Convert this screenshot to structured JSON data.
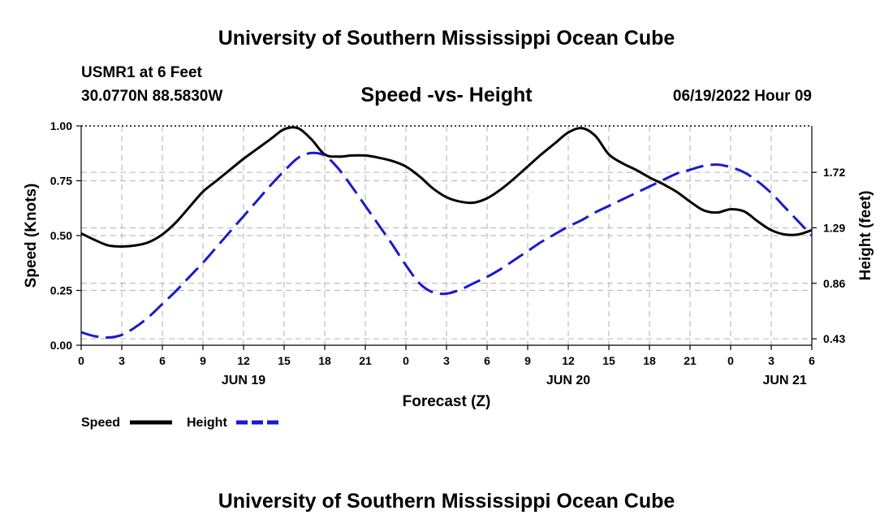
{
  "header": {
    "main_title": "University of Southern Mississippi Ocean Cube",
    "station": "USMR1 at 6 Feet",
    "location": "30.0770N  88.5830W",
    "datetime": "06/19/2022 Hour 09"
  },
  "footer": {
    "title": "University of Southern Mississippi Ocean Cube"
  },
  "colors": {
    "speed": "#000000",
    "height": "#1a1acc",
    "grid": "#bdbdbd"
  },
  "chart_data": {
    "type": "line",
    "title": "Speed -vs- Height",
    "xlabel": "Forecast (Z)",
    "ylabel": "Speed (Knots)",
    "y2label": "Height (feet)",
    "xlim": [
      0,
      54
    ],
    "ylim": [
      0,
      1
    ],
    "x_tick_positions": [
      0,
      3,
      6,
      9,
      12,
      15,
      18,
      21,
      24,
      27,
      30,
      33,
      36,
      39,
      42,
      45,
      48,
      51,
      54
    ],
    "x_tick_labels": [
      "0",
      "3",
      "6",
      "9",
      "12",
      "15",
      "18",
      "21",
      "0",
      "3",
      "6",
      "9",
      "12",
      "15",
      "18",
      "21",
      "0",
      "3",
      "6"
    ],
    "day_labels": [
      {
        "x": 12,
        "label": "JUN 19"
      },
      {
        "x": 36,
        "label": "JUN 20"
      },
      {
        "x": 52,
        "label": "JUN 21"
      }
    ],
    "y_ticks": [
      0,
      0.25,
      0.5,
      0.75,
      1.0
    ],
    "y_tick_labels": [
      "0.00",
      "0.25",
      "0.50",
      "0.75",
      "1.00"
    ],
    "y2_ticks": [
      0.43,
      0.86,
      1.29,
      1.72
    ],
    "y2_tick_labels": [
      "0.43",
      "0.86",
      "1.29",
      "1.72"
    ],
    "y2lim": [
      0.38,
      2.08
    ],
    "grid": true,
    "legend": "bottom-left",
    "series": [
      {
        "name": "Speed",
        "axis": "left",
        "style": "solid",
        "x": [
          0,
          1,
          2,
          3,
          4,
          5,
          6,
          7,
          8,
          9,
          10,
          11,
          12,
          13,
          14,
          15,
          16,
          17,
          18,
          19,
          20,
          21,
          22,
          23,
          24,
          25,
          26,
          27,
          28,
          29,
          30,
          31,
          32,
          33,
          34,
          35,
          36,
          37,
          38,
          39,
          40,
          41,
          42,
          43,
          44,
          45,
          46,
          47,
          48,
          49,
          50,
          51,
          52,
          53,
          54
        ],
        "values": [
          0.51,
          0.48,
          0.455,
          0.45,
          0.455,
          0.47,
          0.505,
          0.56,
          0.63,
          0.7,
          0.75,
          0.8,
          0.85,
          0.895,
          0.94,
          0.985,
          0.99,
          0.94,
          0.87,
          0.86,
          0.865,
          0.865,
          0.855,
          0.84,
          0.815,
          0.77,
          0.715,
          0.675,
          0.655,
          0.65,
          0.67,
          0.71,
          0.76,
          0.815,
          0.87,
          0.92,
          0.97,
          0.99,
          0.955,
          0.87,
          0.83,
          0.8,
          0.765,
          0.735,
          0.7,
          0.655,
          0.615,
          0.605,
          0.62,
          0.61,
          0.565,
          0.525,
          0.505,
          0.505,
          0.525
        ]
      },
      {
        "name": "Height",
        "axis": "right",
        "style": "dashed",
        "x": [
          0,
          1,
          2,
          3,
          4,
          5,
          6,
          7,
          8,
          9,
          10,
          11,
          12,
          13,
          14,
          15,
          16,
          17,
          18,
          19,
          20,
          21,
          22,
          23,
          24,
          25,
          26,
          27,
          28,
          29,
          30,
          31,
          32,
          33,
          34,
          35,
          36,
          37,
          38,
          39,
          40,
          41,
          42,
          43,
          44,
          45,
          46,
          47,
          48,
          49,
          50,
          51,
          52,
          53,
          54
        ],
        "values": [
          0.48,
          0.45,
          0.44,
          0.46,
          0.52,
          0.6,
          0.7,
          0.8,
          0.91,
          1.02,
          1.14,
          1.26,
          1.38,
          1.5,
          1.62,
          1.73,
          1.83,
          1.87,
          1.85,
          1.75,
          1.61,
          1.46,
          1.31,
          1.16,
          1.0,
          0.86,
          0.79,
          0.78,
          0.81,
          0.86,
          0.91,
          0.97,
          1.04,
          1.11,
          1.18,
          1.24,
          1.3,
          1.35,
          1.41,
          1.46,
          1.51,
          1.56,
          1.61,
          1.66,
          1.71,
          1.74,
          1.77,
          1.78,
          1.76,
          1.72,
          1.65,
          1.56,
          1.45,
          1.34,
          1.23
        ]
      }
    ]
  }
}
